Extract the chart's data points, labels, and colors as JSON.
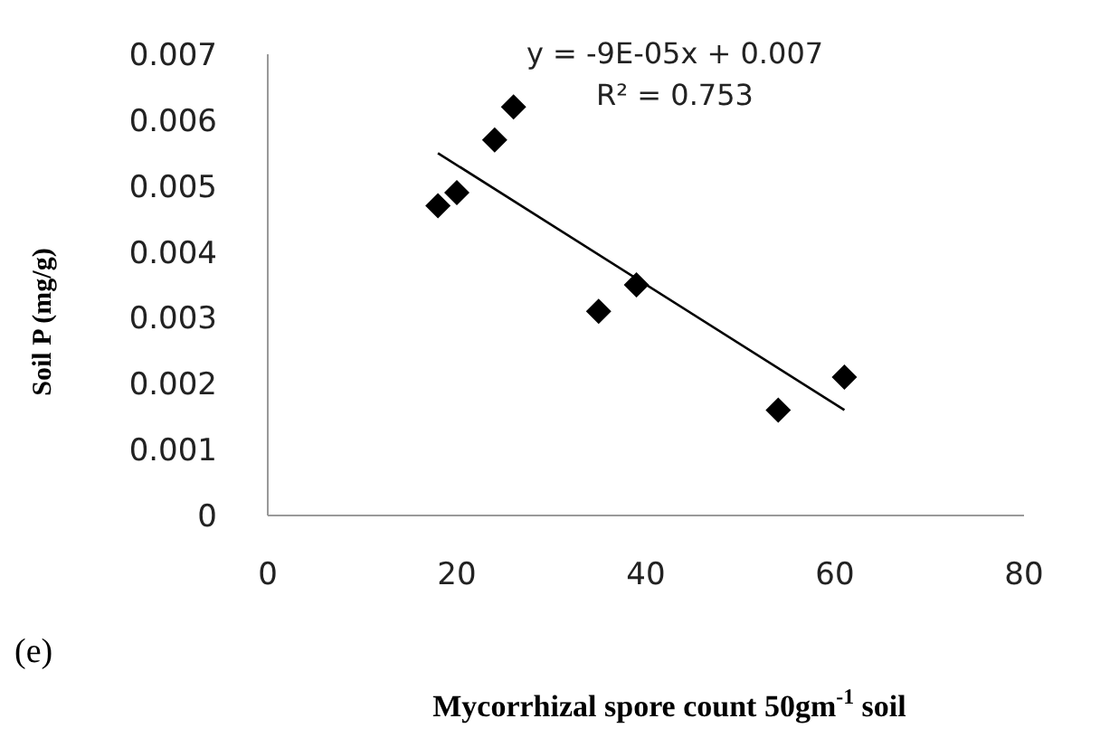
{
  "chart_data": {
    "type": "scatter",
    "xlabel": "Mycorrhizal spore count 50gm$^{-1}$ soil",
    "ylabel": "Soil P (mg/g)",
    "annotations": [
      "y = -9E-05x + 0.007",
      "R² = 0.753",
      "(e)"
    ],
    "series": [
      {
        "color": "#000000",
        "marker": "diamond",
        "x": [
          18,
          20,
          24,
          26,
          35,
          39,
          54,
          61
        ],
        "values": [
          0.0047,
          0.0049,
          0.0057,
          0.0062,
          0.0031,
          0.0035,
          0.0016,
          0.0021
        ]
      },
      {
        "type": "line",
        "color": "#000000",
        "marker": "none",
        "x": [
          18,
          61
        ],
        "values": [
          0.0055,
          0.0016
        ]
      }
    ],
    "xlim": [
      0,
      80
    ],
    "xticks": [
      0,
      20,
      40,
      60,
      80
    ],
    "ylim": [
      0,
      0.007
    ],
    "yticks": [
      0,
      0.001,
      0.002,
      0.003,
      0.004,
      0.005,
      0.006,
      0.007
    ],
    "grid": false,
    "legend": false
  }
}
